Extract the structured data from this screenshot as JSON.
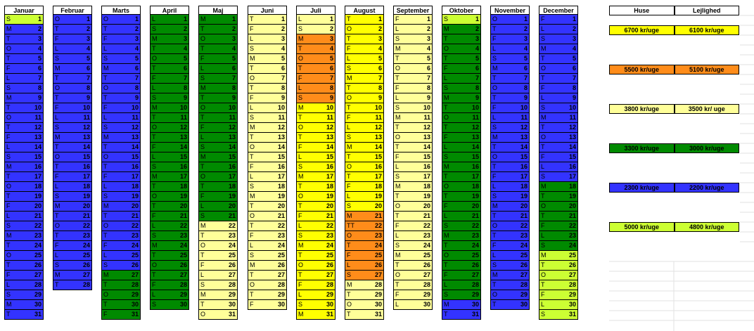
{
  "colors": {
    "yellow": "#ffff00",
    "orange": "#ff8c1a",
    "light": "#ffff99",
    "green": "#008a00",
    "blue": "#3333ff",
    "lime": "#ccff33"
  },
  "legend": {
    "headers": [
      "Huse",
      "Lejlighed"
    ],
    "rows": [
      {
        "color": "yellow",
        "huse": "6700 kr/uge",
        "lejlighed": "6100 kr/uge"
      },
      {
        "color": "orange",
        "huse": "5500 kr/uge",
        "lejlighed": "5100 kr/uge"
      },
      {
        "color": "light",
        "huse": "3800 kr/uge",
        "lejlighed": "3500 kr/ uge"
      },
      {
        "color": "green",
        "huse": "3300 kr/uge",
        "lejlighed": "3000 kr/uge"
      },
      {
        "color": "blue",
        "huse": "2300 kr/uge",
        "lejlighed": "2200 kr/uge"
      },
      {
        "color": "lime",
        "huse": "5000 kr/uge",
        "lejlighed": "4800 kr/uge"
      }
    ]
  },
  "months": [
    {
      "name": "Januar",
      "days": [
        "S",
        "M",
        "T",
        "O",
        "T",
        "F",
        "L",
        "S",
        "M",
        "T",
        "O",
        "T",
        "F",
        "L",
        "S",
        "M",
        "T",
        "O",
        "T",
        "F",
        "L",
        "S",
        "M",
        "T",
        "O",
        "T",
        "F",
        "L",
        "S",
        "M",
        "T"
      ],
      "segments": [
        [
          "lime",
          1,
          1
        ],
        [
          "blue",
          2,
          31
        ]
      ]
    },
    {
      "name": "Februar",
      "days": [
        "O",
        "T",
        "F",
        "L",
        "S",
        "M",
        "T",
        "O",
        "T",
        "F",
        "L",
        "S",
        "M",
        "T",
        "O",
        "T",
        "F",
        "L",
        "S",
        "M",
        "T",
        "O",
        "T",
        "F",
        "L",
        "S",
        "M",
        "T"
      ],
      "segments": [
        [
          "blue",
          1,
          28
        ]
      ]
    },
    {
      "name": "Marts",
      "days": [
        "O",
        "T",
        "F",
        "L",
        "S",
        "M",
        "T",
        "O",
        "T",
        "F",
        "L",
        "S",
        "M",
        "T",
        "O",
        "T",
        "F",
        "L",
        "S",
        "M",
        "T",
        "O",
        "T",
        "F",
        "L",
        "S",
        "M",
        "T",
        "O",
        "T",
        "F"
      ],
      "segments": [
        [
          "blue",
          1,
          26
        ],
        [
          "green",
          27,
          31
        ]
      ]
    },
    {
      "name": "April",
      "days": [
        "L",
        "S",
        "M",
        "T",
        "O",
        "T",
        "F",
        "L",
        "S",
        "M",
        "T",
        "O",
        "T",
        "F",
        "L",
        "S",
        "M",
        "T",
        "O",
        "T",
        "F",
        "L",
        "S",
        "M",
        "T",
        "O",
        "T",
        "F",
        "L",
        "S"
      ],
      "segments": [
        [
          "green",
          1,
          30
        ]
      ]
    },
    {
      "name": "Maj",
      "days": [
        "M",
        "T",
        "O",
        "T",
        "F",
        "L",
        "S",
        "M",
        "T",
        "O",
        "T",
        "F",
        "L",
        "S",
        "M",
        "T",
        "O",
        "T",
        "F",
        "L",
        "S",
        "M",
        "T",
        "O",
        "T",
        "F",
        "L",
        "S",
        "M",
        "T",
        "O"
      ],
      "segments": [
        [
          "green",
          1,
          21
        ],
        [
          "light",
          22,
          31
        ]
      ]
    },
    {
      "name": "Juni",
      "days": [
        "T",
        "F",
        "L",
        "S",
        "M",
        "T",
        "O",
        "T",
        "F",
        "L",
        "S",
        "M",
        "T",
        "O",
        "T",
        "F",
        "L",
        "S",
        "M",
        "T",
        "O",
        "T",
        "F",
        "L",
        "S",
        "M",
        "T",
        "O",
        "T",
        "F"
      ],
      "segments": [
        [
          "light",
          1,
          30
        ]
      ]
    },
    {
      "name": "Juli",
      "days": [
        "L",
        "S",
        "M",
        "T",
        "O",
        "T",
        "F",
        "L",
        "S",
        "M",
        "T",
        "O",
        "T",
        "F",
        "L",
        "S",
        "M",
        "T",
        "O",
        "T",
        "F",
        "L",
        "S",
        "M",
        "T",
        "O",
        "T",
        "F",
        "L",
        "S",
        "M"
      ],
      "segments": [
        [
          "light",
          1,
          2
        ],
        [
          "orange",
          3,
          9
        ],
        [
          "yellow",
          10,
          31
        ]
      ]
    },
    {
      "name": "August",
      "days": [
        "T",
        "O",
        "T",
        "F",
        "L",
        "S",
        "M",
        "T",
        "O",
        "T",
        "F",
        "L",
        "S",
        "M",
        "T",
        "O",
        "T",
        "F",
        "L",
        "S",
        "M",
        "TT",
        "O",
        "T",
        "F",
        "L",
        "S",
        "M",
        "T",
        "O",
        "T"
      ],
      "segments": [
        [
          "yellow",
          1,
          20
        ],
        [
          "orange",
          21,
          27
        ],
        [
          "light",
          28,
          31
        ]
      ]
    },
    {
      "name": "September",
      "days": [
        "F",
        "L",
        "S",
        "M",
        "T",
        "O",
        "T",
        "F",
        "L",
        "S",
        "M",
        "T",
        "O",
        "T",
        "F",
        "L",
        "S",
        "M",
        "T",
        "O",
        "T",
        "F",
        "L",
        "S",
        "M",
        "T",
        "O",
        "T",
        "F",
        "L"
      ],
      "segments": [
        [
          "light",
          1,
          30
        ]
      ]
    },
    {
      "name": "Oktober",
      "days": [
        "S",
        "M",
        "T",
        "O",
        "T",
        "F",
        "L",
        "S",
        "M",
        "T",
        "O",
        "T",
        "F",
        "L",
        "S",
        "M",
        "T",
        "O",
        "T",
        "F",
        "L",
        "S",
        "M",
        "T",
        "O",
        "T",
        "F",
        "L",
        "S",
        "M",
        "T"
      ],
      "segments": [
        [
          "lime",
          1,
          1
        ],
        [
          "green",
          2,
          29
        ],
        [
          "blue",
          30,
          31
        ]
      ]
    },
    {
      "name": "November",
      "days": [
        "O",
        "T",
        "F",
        "L",
        "S",
        "M",
        "T",
        "O",
        "T",
        "F",
        "L",
        "S",
        "M",
        "T",
        "O",
        "T",
        "F",
        "L",
        "S",
        "M",
        "T",
        "O",
        "T",
        "F",
        "L",
        "S",
        "M",
        "T",
        "O",
        "T"
      ],
      "segments": [
        [
          "blue",
          1,
          30
        ]
      ]
    },
    {
      "name": "December",
      "days": [
        "F",
        "L",
        "S",
        "M",
        "T",
        "O",
        "T",
        "F",
        "L",
        "S",
        "M",
        "T",
        "O",
        "T",
        "F",
        "L",
        "S",
        "M",
        "T",
        "O",
        "T",
        "F",
        "L",
        "S",
        "M",
        "T",
        "O",
        "T",
        "F",
        "L",
        "S"
      ],
      "segments": [
        [
          "blue",
          1,
          17
        ],
        [
          "green",
          18,
          24
        ],
        [
          "lime",
          25,
          31
        ]
      ]
    }
  ]
}
